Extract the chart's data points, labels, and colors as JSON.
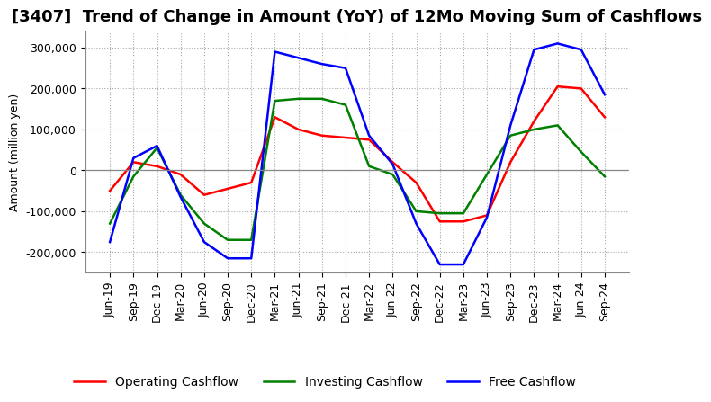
{
  "title": "[3407]  Trend of Change in Amount (YoY) of 12Mo Moving Sum of Cashflows",
  "ylabel": "Amount (million yen)",
  "background_color": "#ffffff",
  "grid_color": "#aaaaaa",
  "ylim": [
    -250000,
    340000
  ],
  "yticks": [
    -200000,
    -100000,
    0,
    100000,
    200000,
    300000
  ],
  "x_labels": [
    "Jun-19",
    "Sep-19",
    "Dec-19",
    "Mar-20",
    "Jun-20",
    "Sep-20",
    "Dec-20",
    "Mar-21",
    "Jun-21",
    "Sep-21",
    "Dec-21",
    "Mar-22",
    "Jun-22",
    "Sep-22",
    "Dec-22",
    "Mar-23",
    "Jun-23",
    "Sep-23",
    "Dec-23",
    "Mar-24",
    "Jun-24",
    "Sep-24"
  ],
  "operating_cashflow": [
    -50000,
    20000,
    10000,
    -10000,
    -60000,
    -45000,
    -30000,
    130000,
    100000,
    85000,
    80000,
    75000,
    20000,
    -30000,
    -125000,
    -125000,
    -110000,
    20000,
    120000,
    205000,
    200000,
    130000
  ],
  "investing_cashflow": [
    -130000,
    -15000,
    55000,
    -60000,
    -130000,
    -170000,
    -170000,
    170000,
    175000,
    175000,
    160000,
    10000,
    -10000,
    -100000,
    -105000,
    -105000,
    -10000,
    85000,
    100000,
    110000,
    45000,
    -15000
  ],
  "free_cashflow": [
    -175000,
    30000,
    60000,
    -65000,
    -175000,
    -215000,
    -215000,
    290000,
    275000,
    260000,
    250000,
    85000,
    15000,
    -130000,
    -230000,
    -230000,
    -115000,
    110000,
    295000,
    310000,
    295000,
    185000
  ],
  "operating_color": "#ff0000",
  "investing_color": "#008000",
  "free_color": "#0000ff",
  "line_width": 1.8,
  "title_fontsize": 13,
  "legend_fontsize": 10,
  "tick_fontsize": 9
}
